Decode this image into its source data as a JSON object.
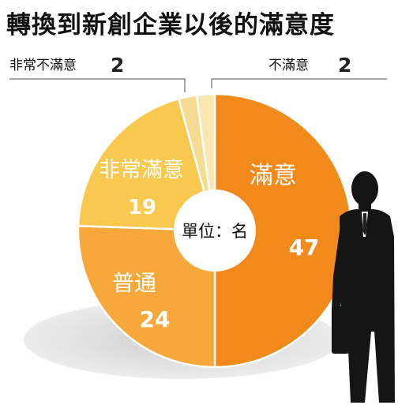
{
  "chart_data": {
    "type": "pie",
    "style": "donut",
    "title": "轉換到新創企業以後的滿意度",
    "unit_label": "單位：名",
    "slices": [
      {
        "label": "滿意",
        "value": 47,
        "color": "#f28a1b"
      },
      {
        "label": "普通",
        "value": 24,
        "color": "#f7a83a"
      },
      {
        "label": "非常滿意",
        "value": 19,
        "color": "#f9c84f"
      },
      {
        "label": "非常不滿意",
        "value": 2,
        "color": "#f6dc92"
      },
      {
        "label": "不滿意",
        "value": 2,
        "color": "#f9e6b0"
      }
    ]
  }
}
